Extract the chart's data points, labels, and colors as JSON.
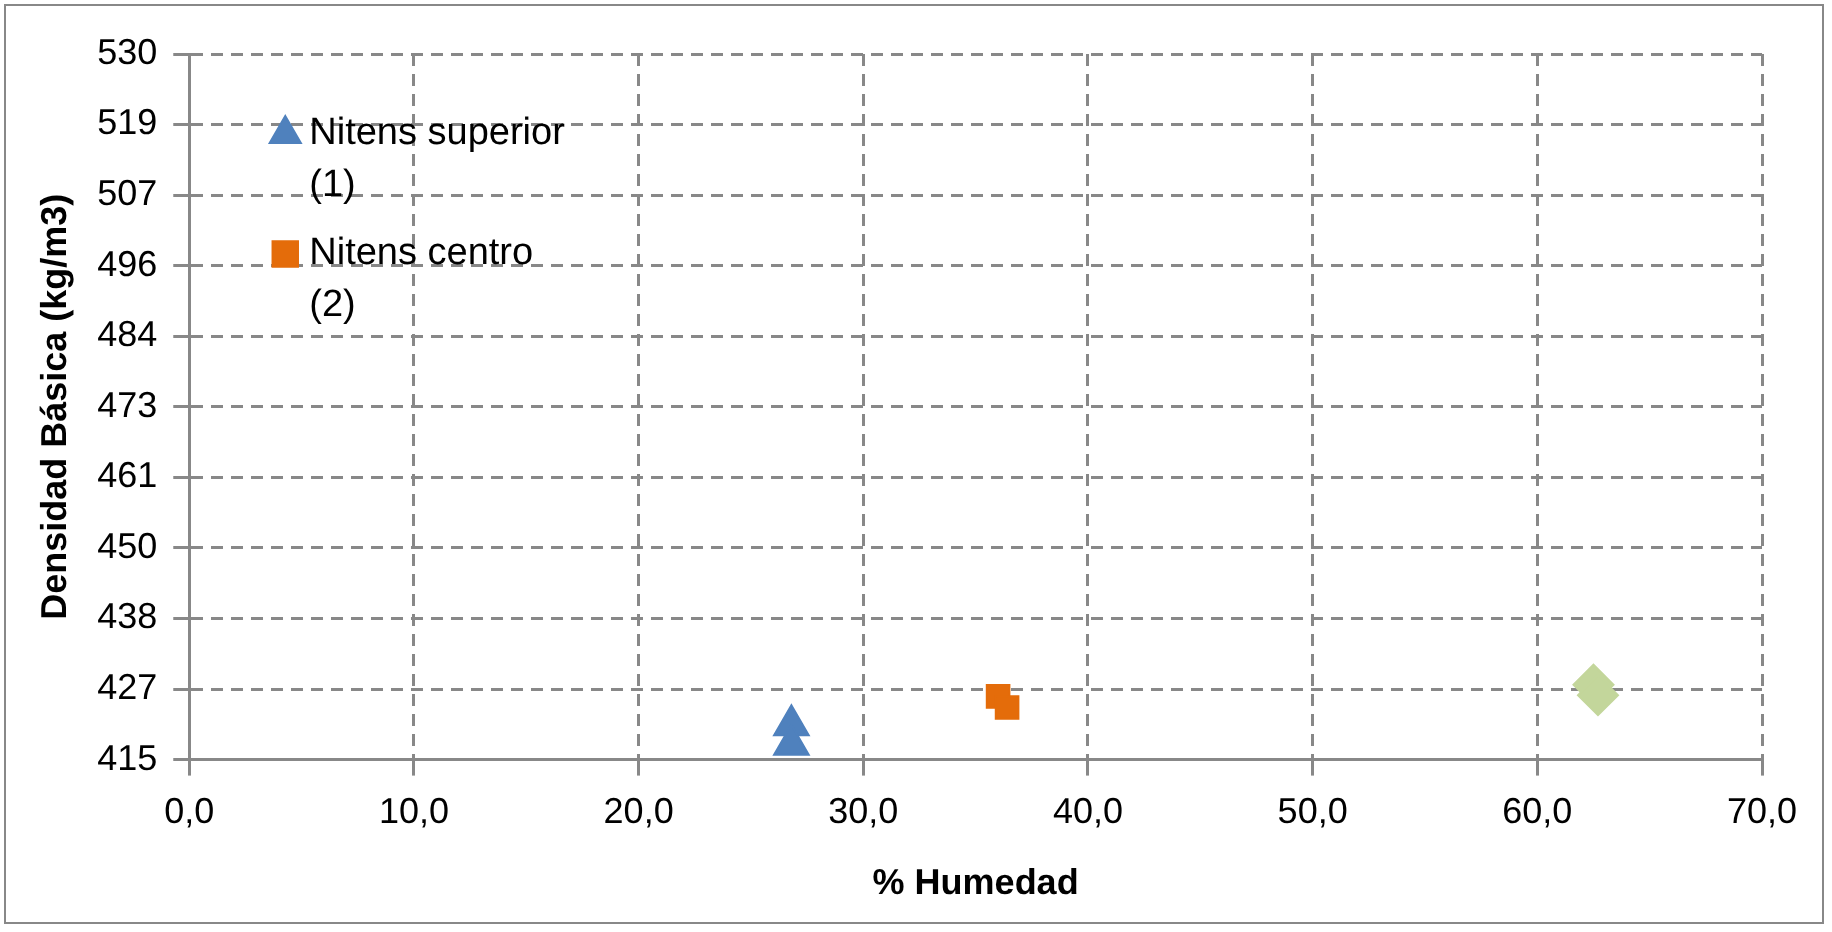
{
  "chart_data": {
    "type": "scatter",
    "xlabel": "% Humedad",
    "ylabel": "Densidad Básica (kg/m3)",
    "xlim": [
      0,
      70
    ],
    "xticks": [
      {
        "value": 0,
        "label": "0,0"
      },
      {
        "value": 10,
        "label": "10,0"
      },
      {
        "value": 20,
        "label": "20,0"
      },
      {
        "value": 30,
        "label": "30,0"
      },
      {
        "value": 40,
        "label": "40,0"
      },
      {
        "value": 50,
        "label": "50,0"
      },
      {
        "value": 60,
        "label": "60,0"
      },
      {
        "value": 70,
        "label": "70,0"
      }
    ],
    "ylim": [
      415,
      530
    ],
    "yticks": [
      415,
      {
        "value": 426.5,
        "label": "427"
      },
      438,
      {
        "value": 449.5,
        "label": "450"
      },
      461,
      {
        "value": 472.5,
        "label": "473"
      },
      484,
      {
        "value": 495.5,
        "label": "496"
      },
      507,
      {
        "value": 518.5,
        "label": "519"
      },
      530
    ],
    "grid": true,
    "legend": "top left",
    "series": [
      {
        "name": "Nitens superior (1)",
        "color": "#4f81bd",
        "marker": "triangle",
        "x": [
          26.8,
          26.8
        ],
        "values": [
          420.6,
          417.4
        ]
      },
      {
        "name": "Nitens centro (2)",
        "color": "#e46c0a",
        "marker": "square",
        "x": [
          36.0,
          36.4
        ],
        "values": [
          425.3,
          423.5
        ]
      },
      {
        "color": "#c3d69b",
        "marker": "diamond",
        "x": [
          62.5,
          62.7
        ],
        "values": [
          427.2,
          425.5
        ]
      }
    ]
  }
}
